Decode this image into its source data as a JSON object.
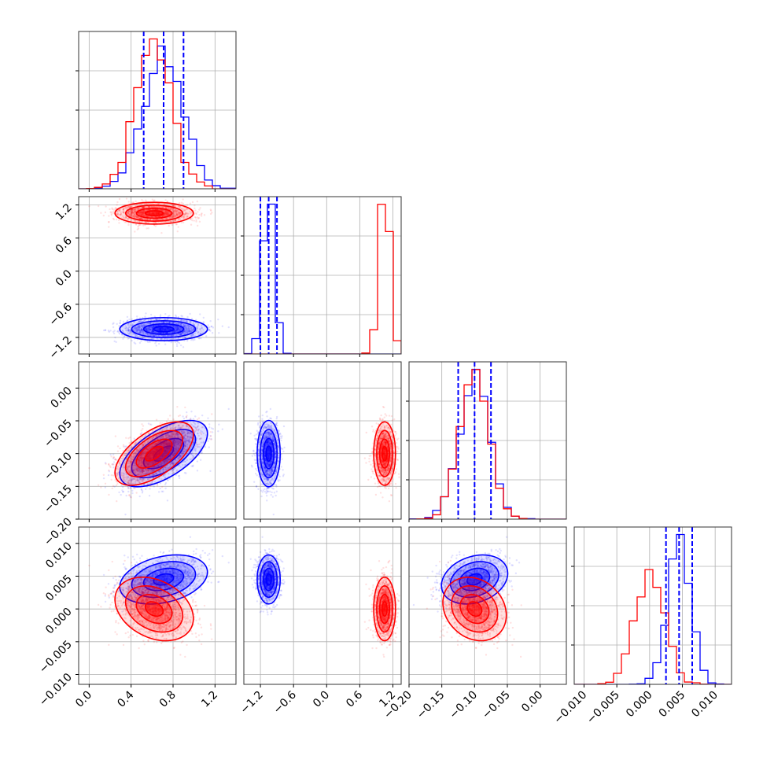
{
  "chart_data": {
    "type": "corner",
    "title": "",
    "parameters": [
      {
        "name": "",
        "range": [
          -0.1,
          1.4
        ],
        "ticks": [
          0.0,
          0.4,
          0.8,
          1.2
        ],
        "tick_labels": [
          "0.0",
          "0.4",
          "0.8",
          "1.2"
        ]
      },
      {
        "name": "",
        "range": [
          -1.5,
          1.35
        ],
        "ticks": [
          -1.2,
          -0.6,
          0.0,
          0.6,
          1.2
        ],
        "tick_labels": [
          "−1.2",
          "−0.6",
          "0.0",
          "0.6",
          "1.2"
        ]
      },
      {
        "name": "",
        "range": [
          -0.2,
          0.04
        ],
        "ticks": [
          -0.2,
          -0.15,
          -0.1,
          -0.05,
          0.0
        ],
        "tick_labels": [
          "−0.20",
          "−0.15",
          "−0.10",
          "−0.05",
          "0.00"
        ]
      },
      {
        "name": "",
        "range": [
          -0.0115,
          0.0125
        ],
        "ticks": [
          -0.01,
          -0.005,
          0.0,
          0.005,
          0.01
        ],
        "tick_labels": [
          "−0.010",
          "−0.005",
          "0.000",
          "0.005",
          "0.010"
        ]
      }
    ],
    "grid": true,
    "series": [
      {
        "color": "#0000ff",
        "means": [
          0.71,
          -1.05,
          -0.1,
          0.0045
        ],
        "sigmas": [
          0.19,
          0.095,
          0.023,
          0.0017
        ],
        "correlations": [
          [
            1,
            0,
            0.6,
            0.3
          ],
          [
            0,
            1,
            0,
            0
          ],
          [
            0.6,
            0,
            1,
            0.25
          ],
          [
            0.3,
            0,
            0.25,
            1
          ]
        ],
        "quantiles": [
          [
            0.52,
            0.71,
            0.9
          ],
          [
            -1.2,
            -1.05,
            -0.9
          ],
          [
            -0.125,
            -0.1,
            -0.075
          ],
          [
            0.0025,
            0.0045,
            0.0065
          ]
        ]
      },
      {
        "color": "#ff0000",
        "means": [
          0.62,
          1.05,
          -0.1,
          0.0
        ],
        "sigmas": [
          0.17,
          0.09,
          0.022,
          0.0022
        ],
        "correlations": [
          [
            1,
            0,
            0.6,
            -0.3
          ],
          [
            0,
            1,
            0,
            0
          ],
          [
            0.6,
            0,
            1,
            -0.2
          ],
          [
            -0.3,
            0,
            -0.2,
            1
          ]
        ]
      }
    ],
    "quantile_line_color": "#0000ff"
  }
}
